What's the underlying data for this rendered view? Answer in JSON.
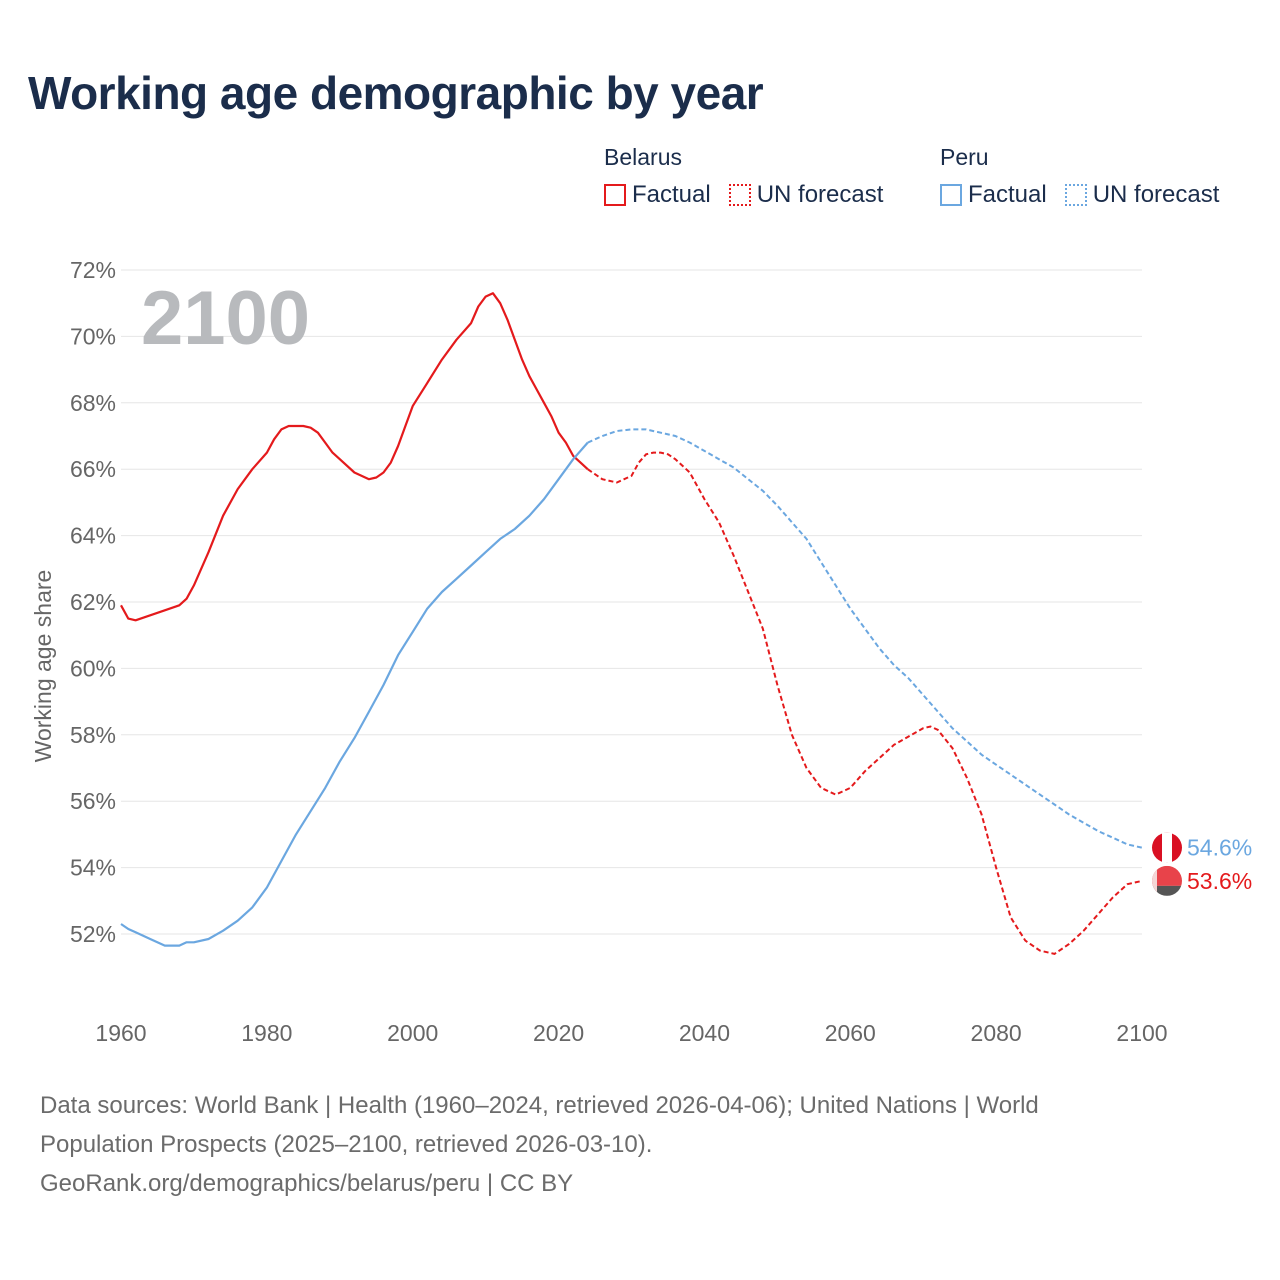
{
  "title": "Working age demographic by year",
  "legend": {
    "groups": [
      {
        "country": "Belarus",
        "color": "#e41a1c",
        "items": [
          {
            "label": "Factual",
            "style": "solid"
          },
          {
            "label": "UN forecast",
            "style": "dotted"
          }
        ]
      },
      {
        "country": "Peru",
        "color": "#6ba7e0",
        "items": [
          {
            "label": "Factual",
            "style": "solid"
          },
          {
            "label": "UN forecast",
            "style": "dotted"
          }
        ]
      }
    ]
  },
  "footer": {
    "line1": "Data sources: World Bank | Health (1960–2024, retrieved 2026-04-06); United Nations | World",
    "line2": "Population Prospects (2025–2100, retrieved 2026-03-10).",
    "line3": "GeoRank.org/demographics/belarus/peru | CC BY"
  },
  "chart_data": {
    "type": "line",
    "title": "Working age demographic by year",
    "current_year": "2100",
    "xlabel": "",
    "ylabel": "Working age share",
    "xlim": [
      1960,
      2100
    ],
    "ylim": [
      50,
      72
    ],
    "x_ticks": [
      1960,
      1980,
      2000,
      2020,
      2040,
      2060,
      2080,
      2100
    ],
    "y_ticks": [
      52,
      54,
      56,
      58,
      60,
      62,
      64,
      66,
      68,
      70,
      72
    ],
    "y_tick_suffix": "%",
    "series": [
      {
        "name": "Belarus",
        "color": "#e41a1c",
        "end_label": "53.6%",
        "factual": [
          [
            1960,
            61.9
          ],
          [
            1961,
            61.5
          ],
          [
            1962,
            61.45
          ],
          [
            1964,
            61.6
          ],
          [
            1966,
            61.75
          ],
          [
            1968,
            61.9
          ],
          [
            1969,
            62.1
          ],
          [
            1970,
            62.5
          ],
          [
            1972,
            63.5
          ],
          [
            1974,
            64.6
          ],
          [
            1976,
            65.4
          ],
          [
            1978,
            66.0
          ],
          [
            1980,
            66.5
          ],
          [
            1981,
            66.9
          ],
          [
            1982,
            67.2
          ],
          [
            1983,
            67.3
          ],
          [
            1984,
            67.3
          ],
          [
            1985,
            67.3
          ],
          [
            1986,
            67.25
          ],
          [
            1987,
            67.1
          ],
          [
            1988,
            66.8
          ],
          [
            1989,
            66.5
          ],
          [
            1990,
            66.3
          ],
          [
            1992,
            65.9
          ],
          [
            1994,
            65.7
          ],
          [
            1995,
            65.75
          ],
          [
            1996,
            65.9
          ],
          [
            1997,
            66.2
          ],
          [
            1998,
            66.7
          ],
          [
            1999,
            67.3
          ],
          [
            2000,
            67.9
          ],
          [
            2002,
            68.6
          ],
          [
            2004,
            69.3
          ],
          [
            2006,
            69.9
          ],
          [
            2008,
            70.4
          ],
          [
            2009,
            70.9
          ],
          [
            2010,
            71.2
          ],
          [
            2011,
            71.3
          ],
          [
            2012,
            71.0
          ],
          [
            2013,
            70.5
          ],
          [
            2014,
            69.9
          ],
          [
            2015,
            69.3
          ],
          [
            2016,
            68.8
          ],
          [
            2017,
            68.4
          ],
          [
            2018,
            68.0
          ],
          [
            2019,
            67.6
          ],
          [
            2020,
            67.1
          ],
          [
            2021,
            66.8
          ],
          [
            2022,
            66.4
          ],
          [
            2023,
            66.2
          ],
          [
            2024,
            66.0
          ]
        ],
        "forecast": [
          [
            2024,
            66.0
          ],
          [
            2026,
            65.7
          ],
          [
            2028,
            65.6
          ],
          [
            2030,
            65.8
          ],
          [
            2031,
            66.2
          ],
          [
            2032,
            66.45
          ],
          [
            2033,
            66.5
          ],
          [
            2034,
            66.5
          ],
          [
            2035,
            66.45
          ],
          [
            2036,
            66.3
          ],
          [
            2038,
            65.9
          ],
          [
            2040,
            65.1
          ],
          [
            2042,
            64.4
          ],
          [
            2044,
            63.4
          ],
          [
            2046,
            62.3
          ],
          [
            2048,
            61.2
          ],
          [
            2050,
            59.5
          ],
          [
            2052,
            58.0
          ],
          [
            2054,
            57.0
          ],
          [
            2056,
            56.4
          ],
          [
            2058,
            56.2
          ],
          [
            2060,
            56.4
          ],
          [
            2062,
            56.9
          ],
          [
            2064,
            57.3
          ],
          [
            2066,
            57.7
          ],
          [
            2068,
            57.95
          ],
          [
            2070,
            58.2
          ],
          [
            2071,
            58.25
          ],
          [
            2072,
            58.15
          ],
          [
            2074,
            57.6
          ],
          [
            2076,
            56.7
          ],
          [
            2078,
            55.6
          ],
          [
            2080,
            54.0
          ],
          [
            2082,
            52.5
          ],
          [
            2084,
            51.8
          ],
          [
            2086,
            51.5
          ],
          [
            2088,
            51.4
          ],
          [
            2090,
            51.7
          ],
          [
            2092,
            52.1
          ],
          [
            2094,
            52.6
          ],
          [
            2096,
            53.1
          ],
          [
            2098,
            53.5
          ],
          [
            2100,
            53.6
          ]
        ]
      },
      {
        "name": "Peru",
        "color": "#6ba7e0",
        "end_label": "54.6%",
        "factual": [
          [
            1960,
            52.3
          ],
          [
            1961,
            52.15
          ],
          [
            1962,
            52.05
          ],
          [
            1964,
            51.85
          ],
          [
            1966,
            51.65
          ],
          [
            1968,
            51.65
          ],
          [
            1969,
            51.75
          ],
          [
            1970,
            51.75
          ],
          [
            1972,
            51.85
          ],
          [
            1974,
            52.1
          ],
          [
            1976,
            52.4
          ],
          [
            1978,
            52.8
          ],
          [
            1980,
            53.4
          ],
          [
            1982,
            54.2
          ],
          [
            1984,
            55.0
          ],
          [
            1986,
            55.7
          ],
          [
            1988,
            56.4
          ],
          [
            1990,
            57.2
          ],
          [
            1992,
            57.9
          ],
          [
            1994,
            58.7
          ],
          [
            1996,
            59.5
          ],
          [
            1998,
            60.4
          ],
          [
            2000,
            61.1
          ],
          [
            2002,
            61.8
          ],
          [
            2004,
            62.3
          ],
          [
            2006,
            62.7
          ],
          [
            2008,
            63.1
          ],
          [
            2010,
            63.5
          ],
          [
            2012,
            63.9
          ],
          [
            2014,
            64.2
          ],
          [
            2016,
            64.6
          ],
          [
            2018,
            65.1
          ],
          [
            2020,
            65.7
          ],
          [
            2022,
            66.3
          ],
          [
            2024,
            66.8
          ]
        ],
        "forecast": [
          [
            2024,
            66.8
          ],
          [
            2026,
            67.0
          ],
          [
            2028,
            67.15
          ],
          [
            2030,
            67.2
          ],
          [
            2032,
            67.2
          ],
          [
            2034,
            67.1
          ],
          [
            2036,
            67.0
          ],
          [
            2038,
            66.8
          ],
          [
            2040,
            66.55
          ],
          [
            2042,
            66.3
          ],
          [
            2044,
            66.05
          ],
          [
            2046,
            65.7
          ],
          [
            2048,
            65.35
          ],
          [
            2050,
            64.9
          ],
          [
            2052,
            64.4
          ],
          [
            2054,
            63.9
          ],
          [
            2056,
            63.2
          ],
          [
            2058,
            62.5
          ],
          [
            2060,
            61.8
          ],
          [
            2062,
            61.2
          ],
          [
            2064,
            60.6
          ],
          [
            2066,
            60.1
          ],
          [
            2068,
            59.7
          ],
          [
            2070,
            59.2
          ],
          [
            2072,
            58.7
          ],
          [
            2074,
            58.2
          ],
          [
            2076,
            57.8
          ],
          [
            2078,
            57.4
          ],
          [
            2080,
            57.1
          ],
          [
            2082,
            56.8
          ],
          [
            2084,
            56.5
          ],
          [
            2086,
            56.2
          ],
          [
            2088,
            55.9
          ],
          [
            2090,
            55.6
          ],
          [
            2092,
            55.35
          ],
          [
            2094,
            55.1
          ],
          [
            2096,
            54.9
          ],
          [
            2098,
            54.7
          ],
          [
            2100,
            54.6
          ]
        ]
      }
    ]
  }
}
